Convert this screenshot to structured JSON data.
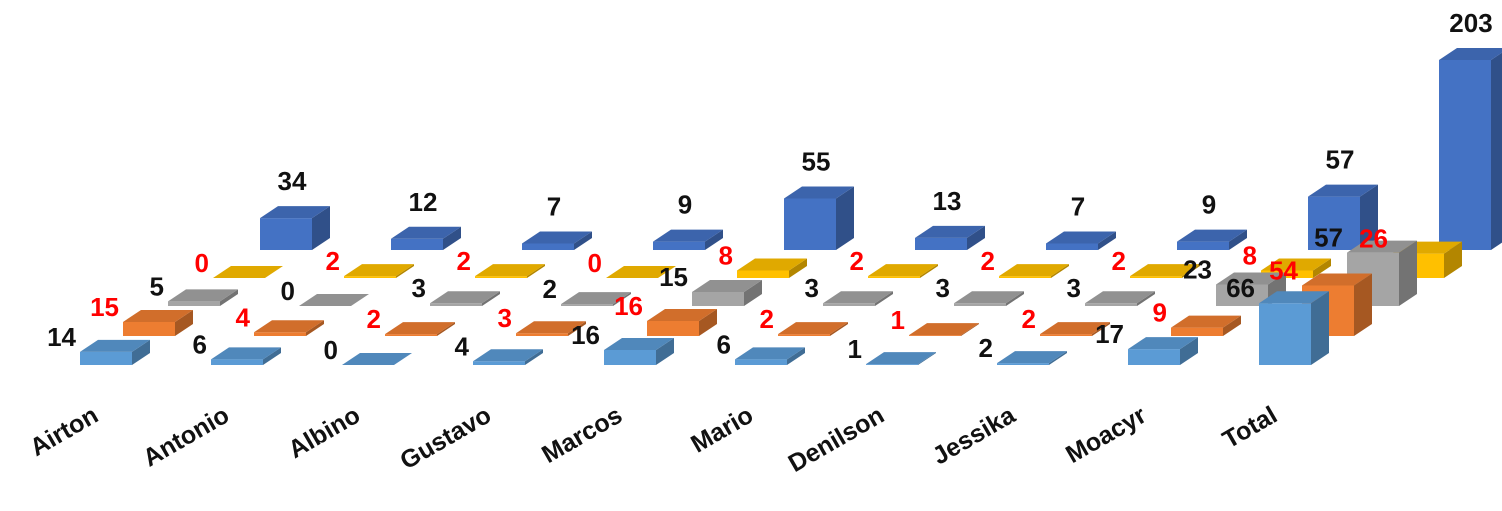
{
  "chart_data": {
    "type": "bar",
    "style": "3d-column",
    "title": "",
    "xlabel": "",
    "ylabel": "",
    "grid": false,
    "legend": "none",
    "categories": [
      "Airton",
      "Antonio",
      "Albino",
      "Gustavo",
      "Marcos",
      "Mario",
      "Denilson",
      "Jessika",
      "Moacyr",
      "Total"
    ],
    "series": [
      {
        "color": "#5B9BD5",
        "label_color": "#111111",
        "values": [
          14,
          6,
          0,
          4,
          16,
          6,
          1,
          2,
          17,
          66
        ]
      },
      {
        "color": "#ED7D31",
        "label_color": "#FF0000",
        "values": [
          15,
          4,
          2,
          3,
          16,
          2,
          1,
          2,
          9,
          54
        ]
      },
      {
        "color": "#A5A5A5",
        "label_color": "#111111",
        "values": [
          5,
          0,
          3,
          2,
          15,
          3,
          3,
          3,
          23,
          57
        ]
      },
      {
        "color": "#FFC000",
        "label_color": "#FF0000",
        "values": [
          0,
          2,
          2,
          0,
          8,
          2,
          2,
          2,
          8,
          26
        ]
      },
      {
        "color": "#4472C4",
        "label_color": "#111111",
        "values": [
          34,
          12,
          7,
          9,
          55,
          13,
          7,
          9,
          57,
          203
        ]
      }
    ]
  }
}
